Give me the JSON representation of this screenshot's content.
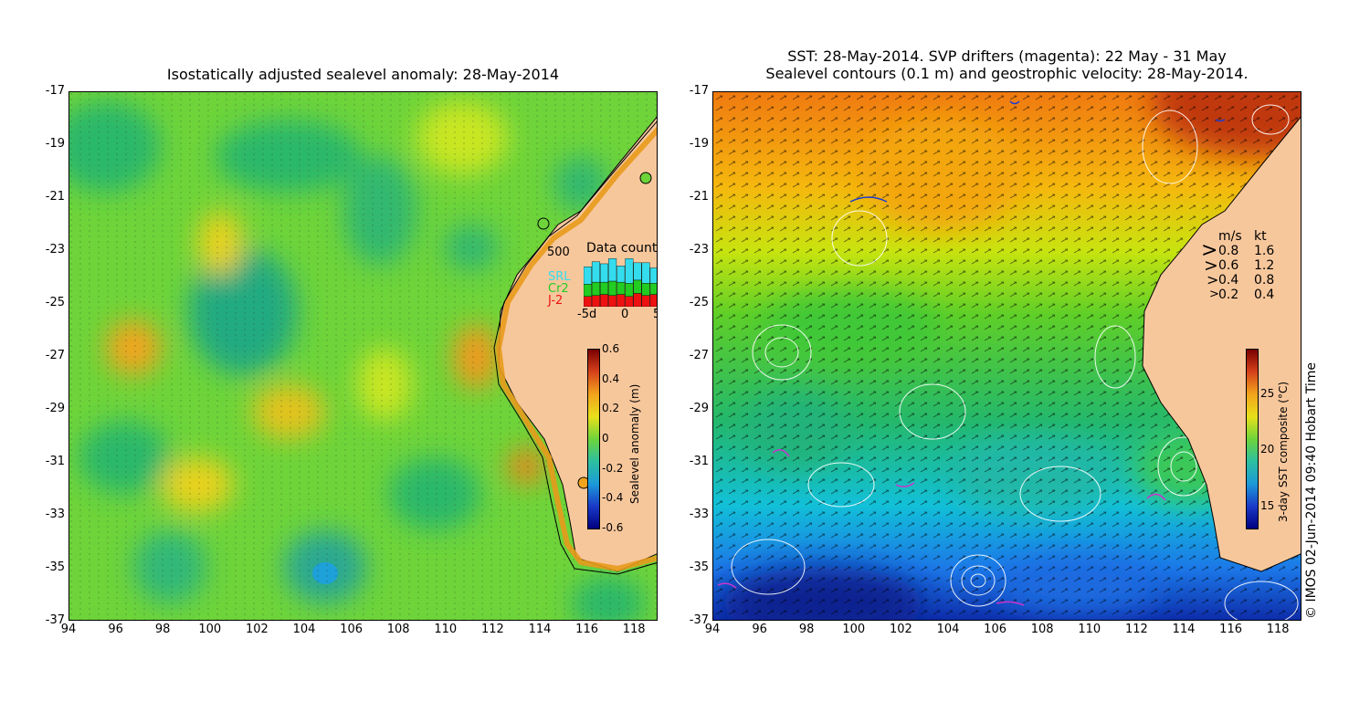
{
  "left": {
    "title": "Isostatically adjusted sealevel anomaly: 28-May-2014",
    "colorbar": {
      "label": "Sealevel anomaly (m)",
      "ticks": [
        "0.6",
        "0.4",
        "0.2",
        "0",
        "-0.2",
        "-0.4",
        "-0.6"
      ]
    },
    "data_count": {
      "title": "Data count",
      "ymax_label": "500",
      "legend": [
        {
          "name": "SRL",
          "color": "#33ddee"
        },
        {
          "name": "Cr2",
          "color": "#22cc22"
        },
        {
          "name": "J-2",
          "color": "#ee1111"
        }
      ],
      "xticks": [
        "-5d",
        "0",
        "5"
      ],
      "bars": [
        {
          "j2": 100,
          "cr2": 120,
          "srl": 170
        },
        {
          "j2": 110,
          "cr2": 130,
          "srl": 200
        },
        {
          "j2": 120,
          "cr2": 120,
          "srl": 180
        },
        {
          "j2": 110,
          "cr2": 140,
          "srl": 220
        },
        {
          "j2": 120,
          "cr2": 120,
          "srl": 160
        },
        {
          "j2": 100,
          "cr2": 130,
          "srl": 240
        },
        {
          "j2": 130,
          "cr2": 130,
          "srl": 170
        },
        {
          "j2": 110,
          "cr2": 120,
          "srl": 200
        },
        {
          "j2": 120,
          "cr2": 110,
          "srl": 150
        }
      ]
    }
  },
  "right": {
    "title_line1": "SST: 28-May-2014. SVP drifters (magenta): 22 May - 31 May",
    "title_line2": "Sealevel contours (0.1 m) and geostrophic velocity: 28-May-2014.",
    "colorbar": {
      "label": "3-day SST composite (°C)",
      "ticks": [
        "25",
        "20",
        "15"
      ]
    },
    "velocity_legend": {
      "header_ms": "m/s",
      "header_kt": "kt",
      "rows": [
        {
          "ms": "0.8",
          "kt": "1.6"
        },
        {
          "ms": "0.6",
          "kt": "1.2"
        },
        {
          "ms": "0.4",
          "kt": "0.8"
        },
        {
          "ms": "0.2",
          "kt": "0.4"
        }
      ]
    }
  },
  "axes": {
    "x_ticks": [
      "94",
      "96",
      "98",
      "100",
      "102",
      "104",
      "106",
      "108",
      "110",
      "112",
      "114",
      "116",
      "118"
    ],
    "y_ticks": [
      "-17",
      "-19",
      "-21",
      "-23",
      "-25",
      "-27",
      "-29",
      "-31",
      "-33",
      "-35",
      "-37"
    ]
  },
  "copyright": "© IMOS 02-Jun-2014 09:40 Hobart Time",
  "colors": {
    "land": "#f7c79c",
    "coast": "#000000"
  }
}
